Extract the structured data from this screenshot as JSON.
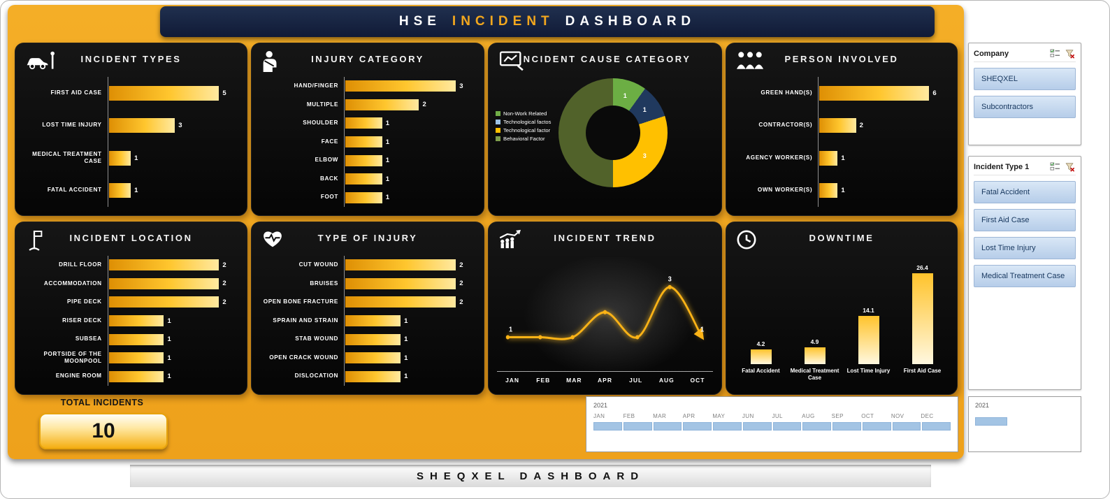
{
  "header": {
    "part1": "HSE",
    "part2": "INCIDENT",
    "part3": "DASHBOARD"
  },
  "footer": {
    "title": "SHEQXEL DASHBOARD"
  },
  "total": {
    "label": "TOTAL INCIDENTS",
    "value": "10"
  },
  "colors": {
    "background": "#EFA21B",
    "panel": "#0B0B0B",
    "bar_gradient_start": "#DE8F04",
    "bar_gradient_end": "#FFE9A0",
    "accent": "#F2A71E",
    "header_navy": "#16213E",
    "slicer_item": "#C3D6EC",
    "timeline_bar": "#A3C4E4"
  },
  "chart_data": [
    {
      "id": "incident_types",
      "type": "bar",
      "orientation": "horizontal",
      "title": "INCIDENT TYPES",
      "icon": "car-crash-icon",
      "categories": [
        "FIRST AID CASE",
        "LOST TIME INJURY",
        "MEDICAL TREATMENT CASE",
        "FATAL ACCIDENT"
      ],
      "values": [
        5,
        3,
        1,
        1
      ],
      "xlim": [
        0,
        5
      ]
    },
    {
      "id": "injury_category",
      "type": "bar",
      "orientation": "horizontal",
      "title": "INJURY CATEGORY",
      "icon": "injured-person-icon",
      "categories": [
        "HAND/FINGER",
        "MULTIPLE",
        "SHOULDER",
        "FACE",
        "ELBOW",
        "BACK",
        "FOOT"
      ],
      "values": [
        3,
        2,
        1,
        1,
        1,
        1,
        1
      ],
      "xlim": [
        0,
        3
      ]
    },
    {
      "id": "incident_cause",
      "type": "pie",
      "title": "INCIDENT CAUSE CATEGORY",
      "icon": "cause-analysis-icon",
      "labels": [
        "Non-Work Related",
        "Technological factos",
        "Technological factor",
        "Behavioral Factor"
      ],
      "values": [
        1,
        1,
        3,
        5
      ],
      "colors": [
        "#6CAE44",
        "#20395E",
        "#FFC000",
        "#51622A"
      ],
      "legend_colors": [
        "#70AD47",
        "#9DC3E6",
        "#FFC000",
        "#7E9E4B"
      ],
      "show_value": [
        true,
        true,
        true,
        false
      ],
      "hole": 0.5,
      "legend_position": "left"
    },
    {
      "id": "person_involved",
      "type": "bar",
      "orientation": "horizontal",
      "title": "PERSON INVOLVED",
      "icon": "people-icon",
      "categories": [
        "GREEN HAND(S)",
        "CONTRACTOR(S)",
        "AGENCY WORKER(S)",
        "OWN WORKER(S)"
      ],
      "values": [
        6,
        2,
        1,
        1
      ],
      "xlim": [
        0,
        6
      ]
    },
    {
      "id": "incident_location",
      "type": "bar",
      "orientation": "horizontal",
      "title": "INCIDENT LOCATION",
      "icon": "location-flag-icon",
      "categories": [
        "DRILL FLOOR",
        "ACCOMMODATION",
        "PIPE DECK",
        "RISER DECK",
        "SUBSEA",
        "PORTSIDE OF THE MOONPOOL",
        "ENGINE ROOM"
      ],
      "values": [
        2,
        2,
        2,
        1,
        1,
        1,
        1
      ],
      "xlim": [
        0,
        2
      ]
    },
    {
      "id": "type_of_injury",
      "type": "bar",
      "orientation": "horizontal",
      "title": "TYPE OF INJURY",
      "icon": "heart-pulse-icon",
      "categories": [
        "CUT WOUND",
        "BRUISES",
        "OPEN BONE FRACTURE",
        "SPRAIN AND STRAIN",
        "STAB WOUND",
        "OPEN CRACK WOUND",
        "DISLOCATION"
      ],
      "values": [
        2,
        2,
        2,
        1,
        1,
        1,
        1
      ],
      "xlim": [
        0,
        2
      ]
    },
    {
      "id": "incident_trend",
      "type": "line",
      "title": "INCIDENT TREND",
      "icon": "trend-people-icon",
      "x": [
        "JAN",
        "FEB",
        "MAR",
        "APR",
        "JUL",
        "AUG",
        "OCT"
      ],
      "values": [
        1,
        1,
        1,
        2,
        1,
        3,
        1
      ],
      "point_labels": [
        "1",
        "",
        "",
        "",
        "",
        "3",
        "1"
      ],
      "ylim": [
        0,
        3.5
      ],
      "line_color": "#FCB316"
    },
    {
      "id": "downtime",
      "type": "bar",
      "orientation": "vertical",
      "title": "DOWNTIME",
      "icon": "clock-icon",
      "categories": [
        "Fatal Accident",
        "Medical Treatment Case",
        "Lost Time Injury",
        "First Aid Case"
      ],
      "values": [
        4.2,
        4.9,
        14.1,
        26.4
      ],
      "ylim": [
        0,
        28
      ]
    }
  ],
  "slicers": [
    {
      "title": "Company",
      "items": [
        "SHEQXEL",
        "Subcontractors"
      ]
    },
    {
      "title": "Incident Type 1",
      "items": [
        "Fatal Accident",
        "First Aid Case",
        "Lost Time Injury",
        "Medical Treatment Case"
      ]
    }
  ],
  "timeline": {
    "year": "2021",
    "months": [
      "JAN",
      "FEB",
      "MAR",
      "APR",
      "MAY",
      "JUN",
      "JUL",
      "AUG",
      "SEP",
      "OCT",
      "NOV",
      "DEC"
    ]
  },
  "mini_timeline": {
    "year": "2021"
  }
}
